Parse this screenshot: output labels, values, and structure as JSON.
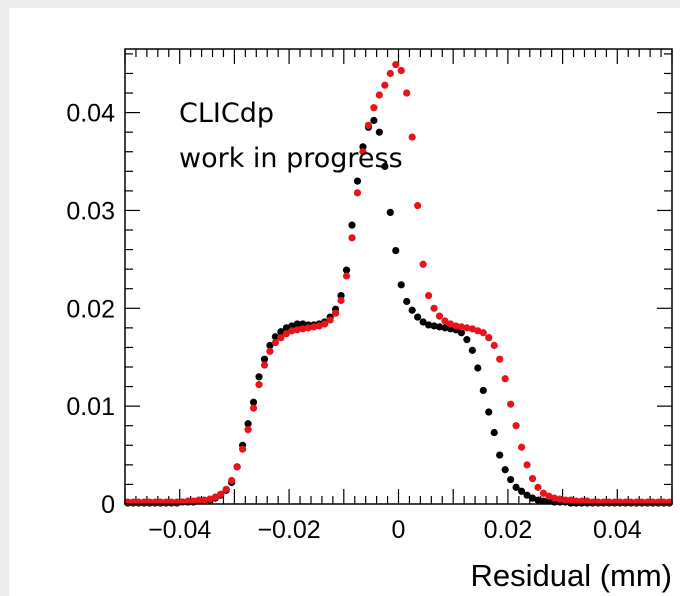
{
  "chart_data": {
    "type": "scatter",
    "xlabel": "Residual (mm)",
    "ylabel": "",
    "xlim": [
      -0.05,
      0.05
    ],
    "ylim": [
      0,
      0.0465
    ],
    "x_ticks": [
      -0.04,
      -0.02,
      0,
      0.02,
      0.04
    ],
    "x_tick_labels": [
      "−0.04",
      "−0.02",
      "0",
      "0.02",
      "0.04"
    ],
    "y_ticks": [
      0,
      0.01,
      0.02,
      0.03,
      0.04
    ],
    "y_tick_labels": [
      "0",
      "0.01",
      "0.02",
      "0.03",
      "0.04"
    ],
    "annotations": [
      "CLICdp",
      "work in progress"
    ],
    "colors": {
      "series_a": "#000000",
      "series_b": "#e8141b"
    },
    "series": [
      {
        "color": "#000000",
        "x": [
          -0.0495,
          -0.0485,
          -0.0475,
          -0.0465,
          -0.0455,
          -0.0445,
          -0.0435,
          -0.0425,
          -0.0415,
          -0.0405,
          -0.0395,
          -0.0385,
          -0.0375,
          -0.0365,
          -0.0355,
          -0.0345,
          -0.0335,
          -0.0325,
          -0.0315,
          -0.0305,
          -0.0295,
          -0.0285,
          -0.0275,
          -0.0265,
          -0.0255,
          -0.0245,
          -0.0235,
          -0.0225,
          -0.0215,
          -0.0205,
          -0.0195,
          -0.0185,
          -0.0175,
          -0.0165,
          -0.0155,
          -0.0145,
          -0.0135,
          -0.0125,
          -0.0115,
          -0.0105,
          -0.0095,
          -0.0085,
          -0.0075,
          -0.0065,
          -0.0055,
          -0.0045,
          -0.0035,
          -0.0025,
          -0.0015,
          -0.0005,
          0.0005,
          0.0015,
          0.0025,
          0.0035,
          0.0045,
          0.0055,
          0.0065,
          0.0075,
          0.0085,
          0.0095,
          0.0105,
          0.0115,
          0.0125,
          0.0135,
          0.0145,
          0.0155,
          0.0165,
          0.0175,
          0.0185,
          0.0195,
          0.0205,
          0.0215,
          0.0225,
          0.0235,
          0.0245,
          0.0255,
          0.0265,
          0.0275,
          0.0285,
          0.0295,
          0.0305,
          0.0315,
          0.0325,
          0.0335,
          0.0345,
          0.0355,
          0.0365,
          0.0375,
          0.0385,
          0.0395,
          0.0405,
          0.0415,
          0.0425,
          0.0435,
          0.0445,
          0.0455,
          0.0465,
          0.0475,
          0.0485,
          0.0495
        ],
        "y": [
          0.0001,
          0.0001,
          0.0001,
          0.0001,
          0.0001,
          0.0001,
          0.0001,
          0.0001,
          0.0001,
          0.0001,
          0.0002,
          0.0002,
          0.0002,
          0.0003,
          0.0003,
          0.0004,
          0.0006,
          0.0009,
          0.0014,
          0.0022,
          0.0038,
          0.006,
          0.0082,
          0.0104,
          0.013,
          0.0148,
          0.0162,
          0.0171,
          0.0176,
          0.018,
          0.0182,
          0.0184,
          0.0184,
          0.0183,
          0.0183,
          0.0184,
          0.0186,
          0.0191,
          0.0199,
          0.0213,
          0.0239,
          0.0285,
          0.033,
          0.0365,
          0.0385,
          0.0392,
          0.038,
          0.0345,
          0.0298,
          0.0259,
          0.0224,
          0.0207,
          0.0198,
          0.0191,
          0.0186,
          0.0183,
          0.0182,
          0.0181,
          0.018,
          0.0179,
          0.0178,
          0.0175,
          0.0168,
          0.0157,
          0.0139,
          0.0116,
          0.0094,
          0.0073,
          0.005,
          0.0035,
          0.0025,
          0.0017,
          0.0013,
          0.0009,
          0.0006,
          0.0004,
          0.0003,
          0.0003,
          0.0002,
          0.0002,
          0.0002,
          0.0001,
          0.0001,
          0.0001,
          0.0001,
          0.0001,
          0.0001,
          0.0001,
          0.0001,
          0.0001,
          0.0001,
          0.0001,
          0.0001,
          0.0001,
          0.0001,
          0.0001,
          0.0001,
          0.0001,
          0.0001,
          0.0001
        ]
      },
      {
        "color": "#e8141b",
        "x": [
          -0.0495,
          -0.0485,
          -0.0475,
          -0.0465,
          -0.0455,
          -0.0445,
          -0.0435,
          -0.0425,
          -0.0415,
          -0.0405,
          -0.0395,
          -0.0385,
          -0.0375,
          -0.0365,
          -0.0355,
          -0.0345,
          -0.0335,
          -0.0325,
          -0.0315,
          -0.0305,
          -0.0295,
          -0.0285,
          -0.0275,
          -0.0265,
          -0.0255,
          -0.0245,
          -0.0235,
          -0.0225,
          -0.0215,
          -0.0205,
          -0.0195,
          -0.0185,
          -0.0175,
          -0.0165,
          -0.0155,
          -0.0145,
          -0.0135,
          -0.0125,
          -0.0115,
          -0.0105,
          -0.0095,
          -0.0085,
          -0.0075,
          -0.0065,
          -0.0055,
          -0.0045,
          -0.0035,
          -0.0025,
          -0.0015,
          -0.0005,
          0.0005,
          0.0015,
          0.0025,
          0.0035,
          0.0045,
          0.0055,
          0.0065,
          0.0075,
          0.0085,
          0.0095,
          0.0105,
          0.0115,
          0.0125,
          0.0135,
          0.0145,
          0.0155,
          0.0165,
          0.0175,
          0.0185,
          0.0195,
          0.0205,
          0.0215,
          0.0225,
          0.0235,
          0.0245,
          0.0255,
          0.0265,
          0.0275,
          0.0285,
          0.0295,
          0.0305,
          0.0315,
          0.0325,
          0.0335,
          0.0345,
          0.0355,
          0.0365,
          0.0375,
          0.0385,
          0.0395,
          0.0405,
          0.0415,
          0.0425,
          0.0435,
          0.0445,
          0.0455,
          0.0465,
          0.0475,
          0.0485,
          0.0495
        ],
        "y": [
          0.0002,
          0.0002,
          0.0002,
          0.0002,
          0.0002,
          0.0002,
          0.0002,
          0.0002,
          0.0002,
          0.0002,
          0.0002,
          0.0003,
          0.0003,
          0.0004,
          0.0004,
          0.0005,
          0.0007,
          0.001,
          0.0015,
          0.0024,
          0.0038,
          0.0056,
          0.0076,
          0.0098,
          0.0122,
          0.0142,
          0.0156,
          0.0165,
          0.017,
          0.0174,
          0.0177,
          0.0178,
          0.0179,
          0.018,
          0.0181,
          0.0182,
          0.0184,
          0.0188,
          0.0195,
          0.0208,
          0.0233,
          0.0272,
          0.0318,
          0.036,
          0.0387,
          0.0405,
          0.0418,
          0.0428,
          0.044,
          0.0449,
          0.0443,
          0.042,
          0.0375,
          0.0305,
          0.0245,
          0.0213,
          0.02,
          0.0192,
          0.0187,
          0.0184,
          0.0182,
          0.0181,
          0.018,
          0.0179,
          0.0177,
          0.0175,
          0.017,
          0.0162,
          0.0148,
          0.0128,
          0.0102,
          0.008,
          0.0058,
          0.004,
          0.0026,
          0.0017,
          0.0011,
          0.0008,
          0.0006,
          0.0005,
          0.0004,
          0.0004,
          0.0003,
          0.0003,
          0.0003,
          0.0002,
          0.0002,
          0.0002,
          0.0002,
          0.0002,
          0.0002,
          0.0002,
          0.0002,
          0.0002,
          0.0002,
          0.0002,
          0.0002,
          0.0002,
          0.0002,
          0.0002
        ]
      }
    ]
  }
}
